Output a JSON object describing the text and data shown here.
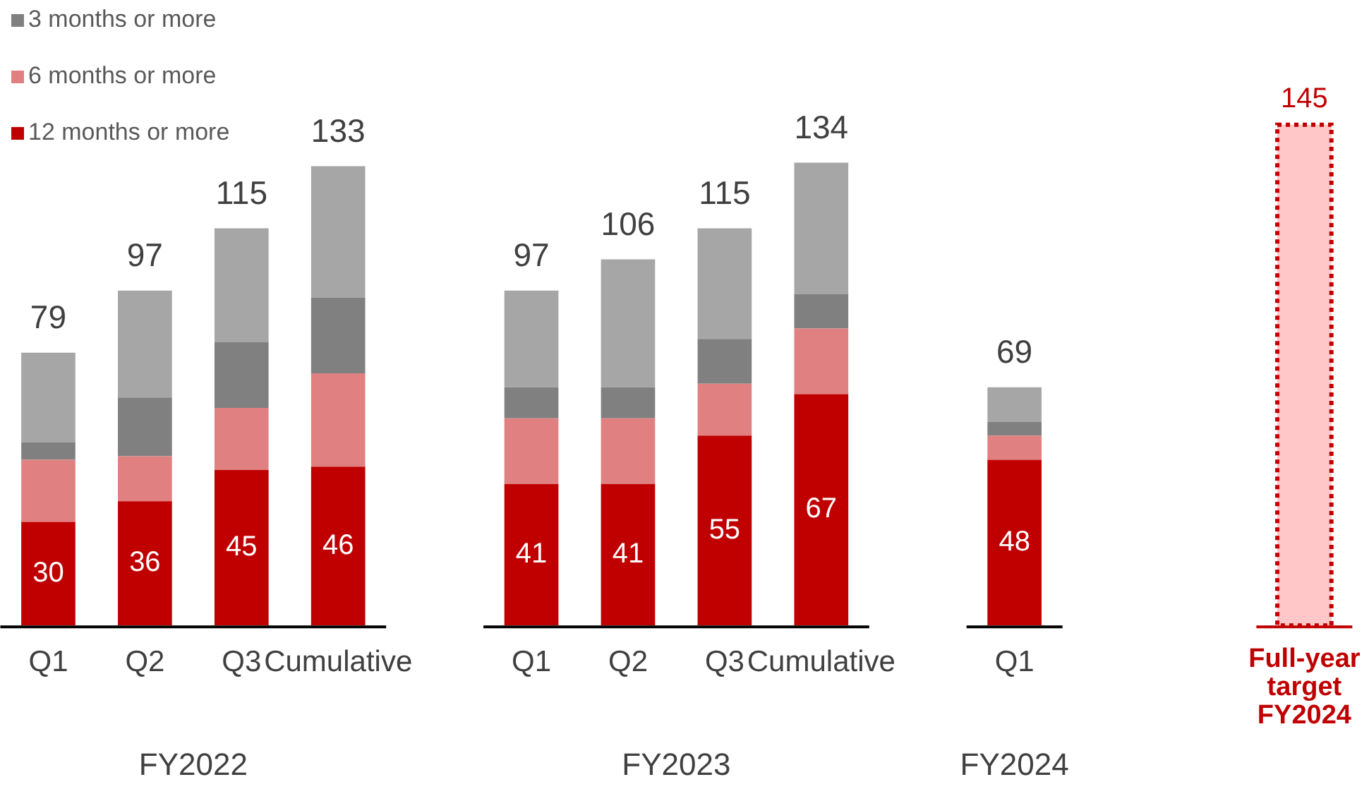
{
  "chart_data": {
    "type": "bar",
    "stacked": true,
    "legend": "top left",
    "categories": [
      "Q1",
      "Q2",
      "Q3",
      "Cumulative",
      null,
      "Q1",
      "Q2",
      "Q3",
      "Cumulative",
      null,
      "Q1",
      null,
      null,
      "Full-year target FY2024"
    ],
    "series": [
      {
        "name": "12 months or more",
        "color": "#c00000",
        "values": [
          30,
          36,
          45,
          46,
          null,
          41,
          41,
          55,
          67,
          null,
          48,
          null,
          null,
          null
        ],
        "value_labels": [
          "30",
          "36",
          "45",
          "46",
          null,
          "41",
          "41",
          "55",
          "67",
          null,
          "48",
          null,
          null,
          null
        ]
      },
      {
        "name": "6 months or more",
        "color": "#e08080",
        "values": [
          18,
          13,
          18,
          27,
          null,
          19,
          19,
          15,
          19,
          null,
          7,
          null,
          null,
          null
        ]
      },
      {
        "name": "3 months or more",
        "color": "#808080",
        "values": [
          5,
          17,
          19,
          22,
          null,
          9,
          9,
          13,
          10,
          null,
          4,
          null,
          null,
          null
        ]
      },
      {
        "color": "#a6a6a6",
        "values": [
          26,
          31,
          33,
          38,
          null,
          28,
          37,
          32,
          38,
          null,
          10,
          null,
          null,
          null
        ]
      },
      {
        "color": "#ffc7c7",
        "line_style": "dotted",
        "values": [
          null,
          null,
          null,
          null,
          null,
          null,
          null,
          null,
          null,
          null,
          null,
          null,
          null,
          145
        ],
        "value_labels": [
          null,
          null,
          null,
          null,
          null,
          null,
          null,
          null,
          null,
          null,
          null,
          null,
          null,
          "145"
        ]
      }
    ],
    "totals": [
      "79",
      "97",
      "115",
      "133",
      null,
      "97",
      "106",
      "115",
      "134",
      null,
      "69",
      null,
      null,
      null
    ],
    "annotations": [
      "FY2022",
      "FY2023",
      "FY2024"
    ]
  }
}
